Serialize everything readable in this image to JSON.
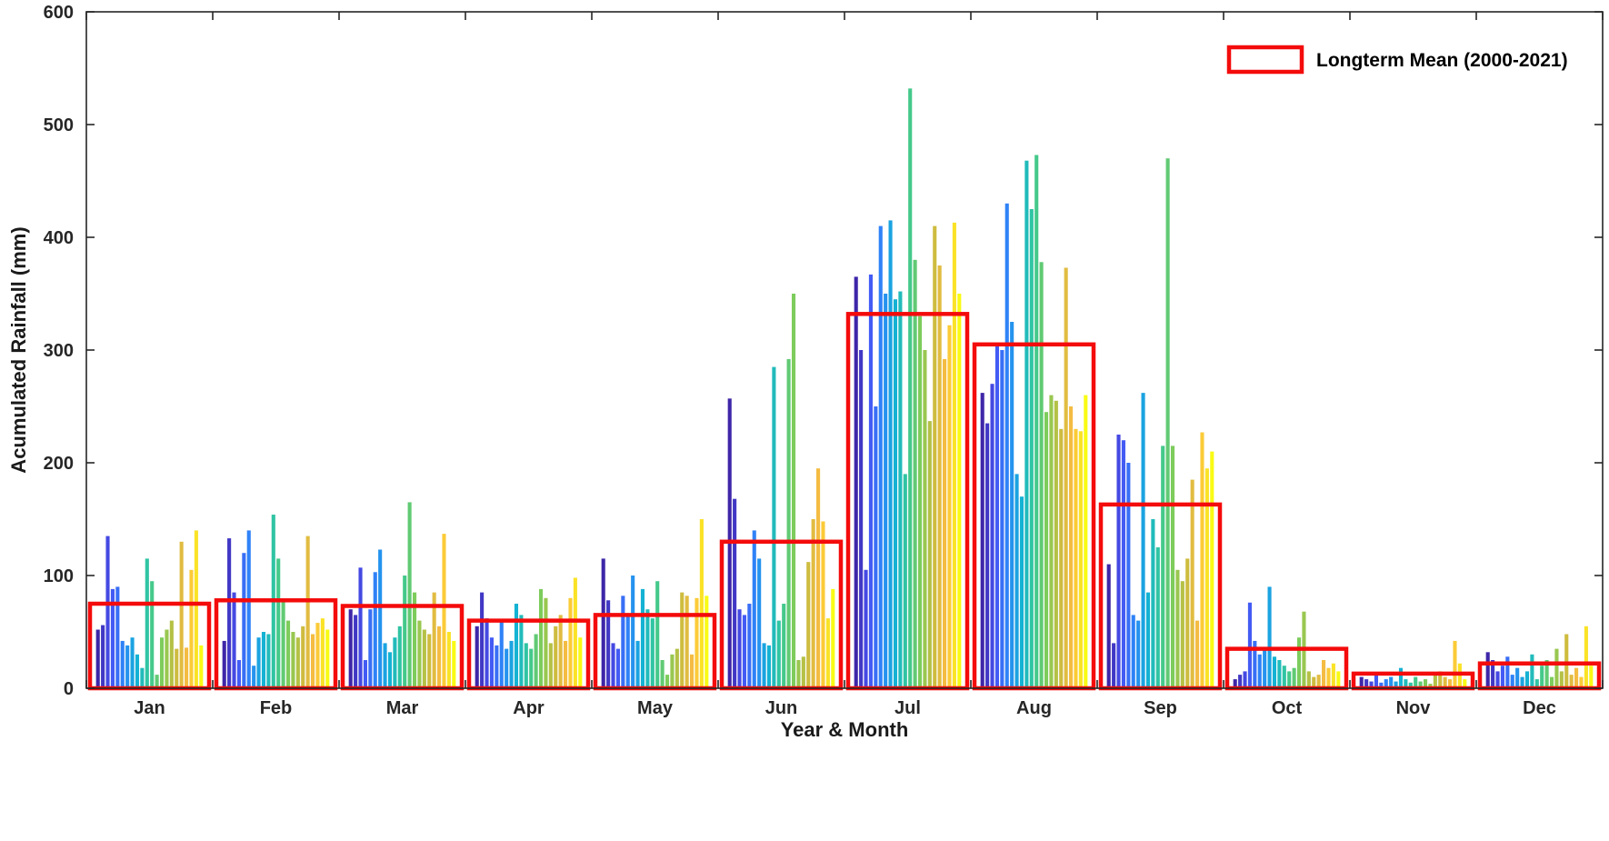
{
  "chart_data": {
    "type": "bar",
    "title": "",
    "xlabel": "Year & Month",
    "ylabel": "Acumulated Rainfall (mm)",
    "ylim": [
      0,
      600
    ],
    "yticks": [
      0,
      100,
      200,
      300,
      400,
      500,
      600
    ],
    "categories": [
      "Jan",
      "Feb",
      "Mar",
      "Apr",
      "May",
      "Jun",
      "Jul",
      "Aug",
      "Sep",
      "Oct",
      "Nov",
      "Dec"
    ],
    "years_range": "2000-2021",
    "n_years": 22,
    "legend": [
      {
        "label": "Longterm Mean (2000-2021)",
        "color": "#f40b0b"
      }
    ],
    "colormap": [
      "#3e26a8",
      "#4754f4",
      "#2d87f7",
      "#12b1d6",
      "#37c897",
      "#81cc59",
      "#c9bc3f",
      "#fbbc43",
      "#f9fb15"
    ],
    "grid": false,
    "legend_position": "top-right",
    "series_by_month": [
      [
        52,
        56,
        135,
        88,
        90,
        42,
        38,
        45,
        30,
        18,
        115,
        95,
        12,
        45,
        52,
        60,
        35,
        130,
        36,
        105,
        140,
        38
      ],
      [
        42,
        133,
        85,
        25,
        120,
        140,
        20,
        45,
        50,
        48,
        154,
        115,
        78,
        60,
        50,
        45,
        55,
        135,
        48,
        58,
        62,
        52
      ],
      [
        70,
        65,
        107,
        25,
        70,
        103,
        123,
        40,
        32,
        45,
        55,
        100,
        165,
        85,
        60,
        52,
        48,
        85,
        55,
        137,
        50,
        42
      ],
      [
        55,
        85,
        62,
        45,
        38,
        60,
        35,
        42,
        75,
        65,
        40,
        35,
        48,
        88,
        80,
        40,
        55,
        65,
        42,
        80,
        98,
        45
      ],
      [
        115,
        78,
        40,
        35,
        82,
        65,
        100,
        42,
        88,
        70,
        62,
        95,
        25,
        12,
        30,
        35,
        85,
        82,
        30,
        80,
        150,
        82
      ],
      [
        257,
        168,
        70,
        65,
        75,
        140,
        115,
        40,
        38,
        285,
        60,
        75,
        292,
        350,
        25,
        28,
        112,
        150,
        195,
        148,
        62,
        88
      ],
      [
        365,
        300,
        105,
        367,
        250,
        410,
        350,
        415,
        345,
        352,
        190,
        532,
        380,
        330,
        300,
        237,
        410,
        375,
        292,
        322,
        413,
        350
      ],
      [
        262,
        235,
        270,
        305,
        300,
        430,
        325,
        190,
        170,
        468,
        425,
        473,
        378,
        245,
        260,
        255,
        230,
        373,
        250,
        230,
        228,
        260
      ],
      [
        110,
        40,
        225,
        220,
        200,
        65,
        60,
        262,
        85,
        150,
        125,
        215,
        470,
        215,
        105,
        95,
        115,
        185,
        60,
        227,
        195,
        210
      ],
      [
        8,
        12,
        15,
        76,
        42,
        30,
        35,
        90,
        28,
        25,
        20,
        15,
        18,
        45,
        68,
        15,
        10,
        12,
        25,
        18,
        22,
        15
      ],
      [
        10,
        8,
        6,
        12,
        5,
        8,
        10,
        6,
        18,
        8,
        5,
        10,
        6,
        8,
        4,
        12,
        15,
        10,
        8,
        42,
        22,
        8
      ],
      [
        32,
        25,
        15,
        20,
        28,
        12,
        18,
        10,
        15,
        30,
        8,
        20,
        25,
        10,
        35,
        15,
        48,
        12,
        18,
        10,
        55,
        20
      ]
    ],
    "longterm_mean": [
      75,
      78,
      73,
      60,
      65,
      130,
      332,
      305,
      163,
      35,
      13,
      22
    ]
  }
}
